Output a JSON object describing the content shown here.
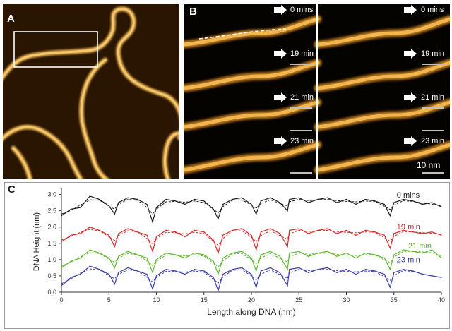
{
  "panels": {
    "a": {
      "letter": "A"
    },
    "b": {
      "letter": "B",
      "scale_label": "10 nm",
      "time_labels": [
        "0 mins",
        "19 min",
        "21 min",
        "23 min"
      ]
    },
    "c": {
      "letter": "C"
    }
  },
  "chart_data": {
    "type": "line",
    "xlabel": "Length along DNA (nm)",
    "ylabel": "DNA Height (nm)",
    "xlim": [
      0,
      40
    ],
    "ylim": [
      0,
      3.1
    ],
    "xticks": [
      0,
      5,
      10,
      15,
      20,
      25,
      30,
      35,
      40
    ],
    "yticks": [
      0.0,
      0.5,
      1.0,
      1.5,
      2.0,
      2.5,
      3.0
    ],
    "grid": false,
    "series": [
      {
        "name": "0 mins",
        "color": "#1a1a1a",
        "label_x": 35.3,
        "label_y": 2.9,
        "x": [
          0,
          1,
          2,
          3,
          4,
          5,
          5.6,
          6,
          7,
          8,
          9,
          9.6,
          10,
          11,
          12,
          13,
          14,
          15,
          16,
          16.5,
          17,
          18,
          19,
          20,
          20.5,
          21,
          22,
          23,
          23.8,
          24,
          25,
          26,
          27,
          28,
          29,
          30,
          31,
          32,
          33,
          34,
          34.6,
          35,
          36,
          37,
          38,
          39,
          40
        ],
        "y": [
          2.35,
          2.55,
          2.6,
          2.95,
          2.85,
          2.65,
          2.4,
          2.75,
          2.9,
          2.85,
          2.7,
          2.15,
          2.6,
          2.85,
          2.8,
          2.7,
          2.85,
          2.8,
          2.55,
          2.25,
          2.7,
          2.85,
          2.9,
          2.7,
          2.4,
          2.8,
          2.9,
          2.75,
          2.5,
          2.85,
          2.9,
          2.75,
          2.85,
          2.9,
          2.75,
          2.85,
          2.7,
          2.85,
          2.8,
          2.7,
          2.35,
          2.75,
          2.85,
          2.8,
          2.7,
          2.75,
          2.62
        ]
      },
      {
        "name": "19 min",
        "color": "#d42a2a",
        "label_x": 35.3,
        "label_y": 1.93,
        "x": [
          0,
          1,
          2,
          3,
          4,
          5,
          5.6,
          6,
          7,
          8,
          9,
          9.6,
          10,
          11,
          12,
          13,
          14,
          15,
          16,
          16.5,
          17,
          18,
          19,
          20,
          20.5,
          21,
          22,
          23,
          23.8,
          24,
          25,
          26,
          27,
          28,
          29,
          30,
          31,
          32,
          33,
          34,
          34.6,
          35,
          36,
          37,
          38,
          39,
          40
        ],
        "y": [
          1.55,
          1.75,
          1.8,
          2.0,
          1.9,
          1.75,
          1.4,
          1.8,
          1.95,
          1.85,
          1.75,
          1.25,
          1.7,
          1.9,
          1.85,
          1.7,
          1.9,
          1.85,
          1.6,
          1.2,
          1.75,
          1.9,
          1.95,
          1.75,
          1.3,
          1.85,
          1.95,
          1.8,
          1.4,
          1.9,
          1.95,
          1.8,
          1.9,
          1.95,
          1.8,
          1.9,
          1.75,
          1.9,
          1.85,
          1.75,
          1.35,
          1.8,
          1.9,
          1.85,
          1.8,
          1.85,
          1.75
        ]
      },
      {
        "name": "21 min",
        "color": "#5fb832",
        "label_x": 36.5,
        "label_y": 1.34,
        "x": [
          0,
          1,
          2,
          3,
          4,
          5,
          5.6,
          6,
          7,
          8,
          9,
          9.6,
          10,
          11,
          12,
          13,
          14,
          15,
          16,
          16.5,
          17,
          18,
          19,
          20,
          20.5,
          21,
          22,
          23,
          23.8,
          24,
          25,
          26,
          27,
          28,
          29,
          30,
          31,
          32,
          33,
          34,
          34.6,
          35,
          36,
          37,
          38,
          39,
          40
        ],
        "y": [
          0.75,
          0.95,
          1.05,
          1.3,
          1.2,
          1.05,
          0.75,
          1.1,
          1.25,
          1.15,
          1.05,
          0.6,
          1.0,
          1.2,
          1.15,
          1.05,
          1.2,
          1.15,
          0.95,
          0.55,
          1.05,
          1.2,
          1.25,
          1.05,
          0.65,
          1.15,
          1.25,
          1.1,
          0.7,
          1.2,
          1.25,
          1.1,
          1.2,
          1.25,
          1.1,
          1.2,
          1.05,
          1.2,
          1.15,
          1.05,
          0.7,
          1.15,
          1.3,
          1.25,
          1.2,
          1.3,
          1.05
        ]
      },
      {
        "name": "23 min",
        "color": "#3a3ea8",
        "label_x": 35.3,
        "label_y": 0.92,
        "x": [
          0,
          1,
          2,
          3,
          4,
          5,
          5.6,
          6,
          7,
          8,
          9,
          9.6,
          10,
          11,
          12,
          13,
          14,
          15,
          16,
          16.5,
          17,
          18,
          19,
          20,
          20.5,
          21,
          22,
          23,
          23.8,
          24,
          25,
          26,
          27,
          28,
          29,
          30,
          31,
          32,
          33,
          34,
          34.6,
          35,
          36,
          37,
          38,
          39,
          40
        ],
        "y": [
          0.2,
          0.45,
          0.55,
          0.8,
          0.7,
          0.55,
          0.25,
          0.6,
          0.75,
          0.65,
          0.55,
          0.1,
          0.5,
          0.7,
          0.65,
          0.55,
          0.7,
          0.65,
          0.45,
          0.05,
          0.55,
          0.7,
          0.75,
          0.55,
          0.15,
          0.65,
          0.75,
          0.6,
          0.2,
          0.7,
          0.75,
          0.6,
          0.7,
          0.75,
          0.6,
          0.7,
          0.55,
          0.7,
          0.65,
          0.55,
          0.15,
          0.6,
          0.7,
          0.65,
          0.55,
          0.5,
          0.45
        ]
      }
    ]
  }
}
